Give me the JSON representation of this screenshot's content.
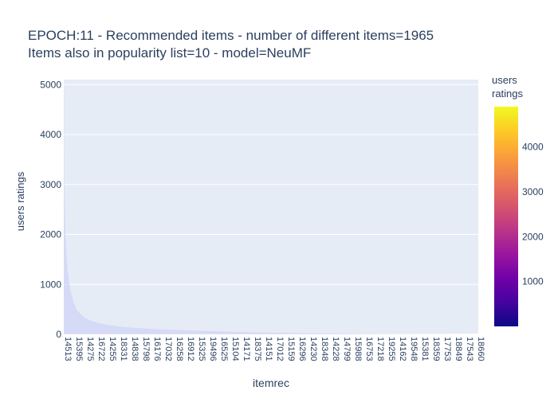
{
  "chart_data": {
    "type": "bar",
    "title_line1": "EPOCH:11 - Recommended items - number of different items=1965",
    "title_line2": "Items also in popularity list=10 - model=NeuMF",
    "xlabel": "itemrec",
    "ylabel": "users ratings",
    "ylim": [
      0,
      5100
    ],
    "yticks": [
      0,
      1000,
      2000,
      3000,
      4000,
      5000
    ],
    "xtick_labels": [
      "14513",
      "15395",
      "14275",
      "16722",
      "14255",
      "18331",
      "14838",
      "15798",
      "16176",
      "17032",
      "16258",
      "16912",
      "15325",
      "19496",
      "16525",
      "15104",
      "14171",
      "18375",
      "14151",
      "17012",
      "15159",
      "16296",
      "14230",
      "18348",
      "14228",
      "14799",
      "15988",
      "16753",
      "17218",
      "19255",
      "14162",
      "19548",
      "15381",
      "18359",
      "17753",
      "18849",
      "17543",
      "18660"
    ],
    "item_count": 1965,
    "values_profile": [
      [
        0,
        4900
      ],
      [
        1,
        3600
      ],
      [
        2,
        3000
      ],
      [
        4,
        2500
      ],
      [
        7,
        2000
      ],
      [
        12,
        1600
      ],
      [
        20,
        1200
      ],
      [
        30,
        900
      ],
      [
        45,
        650
      ],
      [
        60,
        500
      ],
      [
        80,
        400
      ],
      [
        100,
        330
      ],
      [
        130,
        270
      ],
      [
        170,
        220
      ],
      [
        220,
        180
      ],
      [
        280,
        150
      ],
      [
        350,
        125
      ],
      [
        450,
        100
      ],
      [
        550,
        85
      ],
      [
        650,
        70
      ],
      [
        750,
        55
      ],
      [
        850,
        45
      ],
      [
        950,
        35
      ],
      [
        1050,
        28
      ],
      [
        1150,
        22
      ],
      [
        1300,
        16
      ],
      [
        1450,
        11
      ],
      [
        1600,
        8
      ],
      [
        1750,
        5
      ],
      [
        1900,
        3
      ],
      [
        1964,
        2
      ]
    ],
    "colorbar": {
      "title_line1": "users",
      "title_line2": "ratings",
      "min": 1,
      "max": 4900,
      "ticks": [
        1000,
        2000,
        3000,
        4000
      ],
      "colors": [
        "#0d0887",
        "#46039f",
        "#7201a8",
        "#9c179e",
        "#bd3786",
        "#d8576b",
        "#ed7953",
        "#fb9f3a",
        "#fdca26",
        "#f0f921"
      ]
    },
    "bar_color": "#cfd3f7",
    "grid": true
  }
}
